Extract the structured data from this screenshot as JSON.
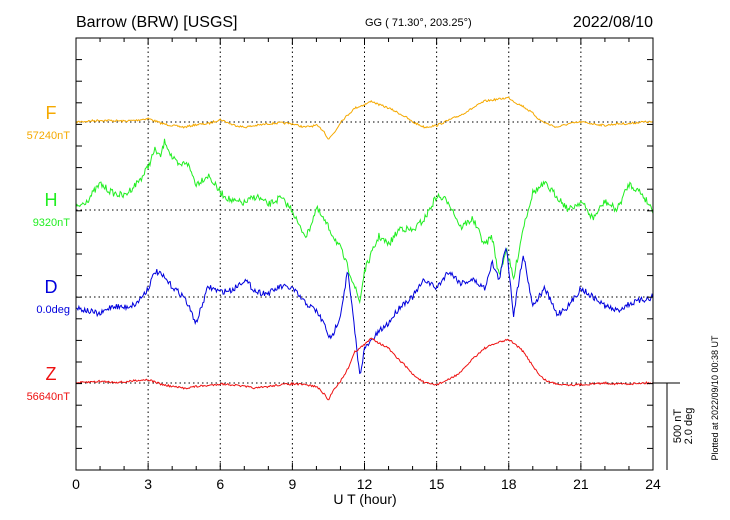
{
  "header": {
    "station": "Barrow (BRW)  [USGS]",
    "coords": "GG ( 71.30°, 203.25°)",
    "date": "2022/08/10"
  },
  "footer": {
    "plotted": "Plotted at 2022/09/10 00:38 UT"
  },
  "chart_data": {
    "type": "line",
    "xlabel": "U T (hour)",
    "xlim": [
      0,
      24
    ],
    "xticks": [
      0,
      3,
      6,
      9,
      12,
      15,
      18,
      21,
      24
    ],
    "grid": true,
    "scale_bar": {
      "label1": "500 nT",
      "label2": "2.0 deg",
      "value_nT": 500,
      "value_deg": 2.0
    },
    "series": [
      {
        "name": "F",
        "baseline_label": "57240nT",
        "color": "#f5a900",
        "offset_nT": 0,
        "x": [
          0,
          0.5,
          1,
          1.5,
          2,
          2.5,
          3,
          3.3,
          3.6,
          4,
          4.5,
          5,
          5.5,
          6,
          6.5,
          7,
          7.5,
          8,
          8.5,
          9,
          9.5,
          10,
          10.3,
          10.5,
          10.8,
          11,
          11.3,
          11.6,
          12,
          12.3,
          12.6,
          13,
          13.3,
          13.7,
          14,
          14.5,
          15,
          15.5,
          16,
          16.5,
          17,
          17.5,
          18,
          18.3,
          18.6,
          19,
          19.3,
          19.6,
          20,
          20.5,
          21,
          21.5,
          22,
          22.5,
          23,
          23.5,
          24
        ],
        "y": [
          0,
          5,
          10,
          8,
          5,
          10,
          20,
          5,
          -10,
          -20,
          -30,
          -15,
          -10,
          15,
          -15,
          -30,
          -20,
          -10,
          -5,
          -10,
          -30,
          -20,
          -50,
          -100,
          -50,
          0,
          40,
          80,
          100,
          120,
          100,
          80,
          60,
          30,
          0,
          -30,
          -20,
          10,
          40,
          80,
          120,
          130,
          140,
          110,
          90,
          50,
          10,
          -10,
          -30,
          -10,
          0,
          -10,
          -20,
          -10,
          -10,
          0,
          0
        ]
      },
      {
        "name": "H",
        "baseline_label": "9320nT",
        "color": "#22ee22",
        "offset_nT": 0,
        "x": [
          0,
          0.5,
          1,
          1.5,
          2,
          2.5,
          2.8,
          3,
          3.3,
          3.5,
          3.7,
          4,
          4.3,
          4.6,
          5,
          5.5,
          6,
          6.5,
          7,
          7.5,
          8,
          8.5,
          9,
          9.3,
          9.6,
          10,
          10.5,
          11,
          11.5,
          11.8,
          12,
          12.3,
          12.6,
          13,
          13.5,
          14,
          14.5,
          15,
          15.5,
          16,
          16.5,
          17,
          17.3,
          17.6,
          17.9,
          18.2,
          18.6,
          19,
          19.5,
          20,
          20.5,
          21,
          21.5,
          22,
          22.5,
          23,
          23.5,
          24
        ],
        "y": [
          10,
          60,
          150,
          100,
          80,
          150,
          200,
          250,
          350,
          300,
          400,
          300,
          250,
          280,
          150,
          200,
          100,
          50,
          40,
          80,
          30,
          70,
          0,
          -100,
          -150,
          10,
          -100,
          -220,
          -400,
          -530,
          -350,
          -250,
          -150,
          -200,
          -100,
          -120,
          -50,
          80,
          50,
          -100,
          -50,
          -200,
          -150,
          -380,
          -220,
          -400,
          -100,
          100,
          150,
          80,
          0,
          50,
          -50,
          50,
          0,
          150,
          100,
          0
        ]
      },
      {
        "name": "D",
        "baseline_label": "0.0deg",
        "color": "#0000dd",
        "offset_nT": 0,
        "x": [
          0,
          0.5,
          1,
          1.5,
          2,
          2.5,
          3,
          3.3,
          3.6,
          4,
          4.5,
          5,
          5.5,
          6,
          6.5,
          7,
          7.5,
          8,
          8.5,
          9,
          9.5,
          10,
          10.3,
          10.6,
          11,
          11.3,
          11.6,
          11.8,
          12,
          12.3,
          12.6,
          13,
          13.5,
          14,
          14.5,
          15,
          15.5,
          16,
          16.5,
          17,
          17.3,
          17.6,
          17.9,
          18.2,
          18.6,
          19,
          19.5,
          20,
          20.5,
          21,
          21.5,
          22,
          22.5,
          23,
          23.5,
          24
        ],
        "y": [
          -60,
          -80,
          -100,
          -50,
          -60,
          -40,
          50,
          150,
          120,
          60,
          0,
          -150,
          60,
          30,
          40,
          100,
          30,
          20,
          60,
          50,
          -30,
          -80,
          -150,
          -250,
          -100,
          150,
          -200,
          -450,
          -300,
          -250,
          -200,
          -150,
          -50,
          0,
          100,
          50,
          150,
          80,
          100,
          50,
          200,
          100,
          300,
          -100,
          250,
          -50,
          50,
          -100,
          -50,
          50,
          0,
          -50,
          -80,
          -40,
          -20,
          0
        ]
      },
      {
        "name": "Z",
        "baseline_label": "56640nT",
        "color": "#ee1111",
        "offset_nT": 0,
        "x": [
          0,
          0.5,
          1,
          1.5,
          2,
          2.5,
          3,
          3.3,
          3.6,
          4,
          4.5,
          5,
          5.5,
          6,
          6.5,
          7,
          7.5,
          8,
          8.5,
          9,
          9.5,
          10,
          10.3,
          10.5,
          10.7,
          11,
          11.3,
          11.6,
          12,
          12.3,
          12.6,
          13,
          13.3,
          13.7,
          14,
          14.5,
          15,
          15.5,
          16,
          16.5,
          17,
          17.5,
          18,
          18.3,
          18.6,
          19,
          19.3,
          19.6,
          20,
          20.5,
          21,
          21.5,
          22,
          22.5,
          23,
          23.5,
          24
        ],
        "y": [
          0,
          5,
          10,
          5,
          5,
          15,
          20,
          5,
          -10,
          -20,
          -30,
          -20,
          -15,
          -5,
          -10,
          -20,
          -30,
          -20,
          -10,
          -5,
          -10,
          -20,
          -60,
          -100,
          -40,
          10,
          80,
          180,
          220,
          260,
          230,
          200,
          150,
          100,
          50,
          0,
          -10,
          20,
          60,
          140,
          200,
          230,
          250,
          220,
          180,
          100,
          40,
          10,
          -5,
          -10,
          -10,
          -5,
          0,
          -5,
          -5,
          0,
          0
        ]
      }
    ]
  }
}
